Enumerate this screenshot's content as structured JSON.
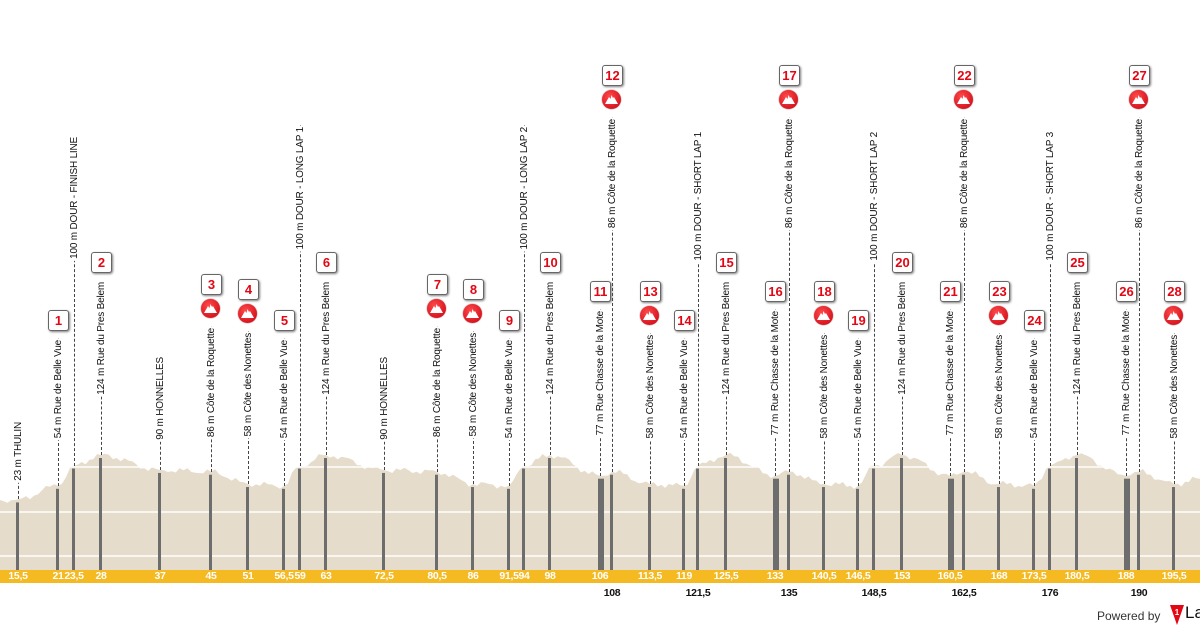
{
  "profile": {
    "fill_color": "#e6dccb",
    "km_bar_color": "#f5b921",
    "marker_number_color": "#e30613",
    "climb_icon_color": "#d10014",
    "waypoints": [
      {
        "km": "15,5",
        "label": "23 m THULIN",
        "alt": 23
      },
      {
        "km": "21",
        "label": "54 m Rue de Belle Vue",
        "alt": 54,
        "number": "1"
      },
      {
        "km": "23,5",
        "label": "100 m DOUR - FINISH LINE",
        "alt": 100
      },
      {
        "km": "28",
        "label": "124 m Rue du Pres Belem",
        "alt": 124,
        "number": "2"
      },
      {
        "km": "37",
        "label": "90 m HONNELLES",
        "alt": 90
      },
      {
        "km": "45",
        "label": "86 m Côte de la Roquette",
        "alt": 86,
        "number": "3",
        "icon": "climb-icon"
      },
      {
        "km": "51",
        "label": "58 m Côte des Nonettes",
        "alt": 58,
        "number": "4",
        "icon": "climb-icon"
      },
      {
        "km": "56,5",
        "label": "54 m Rue de Belle Vue",
        "alt": 54,
        "number": "5"
      },
      {
        "km": "59",
        "label": "100 m DOUR - LONG LAP 1",
        "alt": 100
      },
      {
        "km": "63",
        "label": "124 m Rue du Pres Belem",
        "alt": 124,
        "number": "6"
      },
      {
        "km": "72,5",
        "label": "90 m HONNELLES",
        "alt": 90
      },
      {
        "km": "80,5",
        "label": "86 m Côte de la Roquette",
        "alt": 86,
        "number": "7",
        "icon": "climb-icon"
      },
      {
        "km": "86",
        "label": "58 m Côte des Nonettes",
        "alt": 58,
        "number": "8",
        "icon": "climb-icon"
      },
      {
        "km": "91,5",
        "label": "54 m Rue de Belle Vue",
        "alt": 54,
        "number": "9"
      },
      {
        "km": "94",
        "label": "100 m DOUR - LONG LAP 2",
        "alt": 100
      },
      {
        "km": "98",
        "label": "124 m Rue du Pres Belem",
        "alt": 124,
        "number": "10"
      },
      {
        "km": "106",
        "label": "77 m Rue Chasse de la Mote",
        "alt": 77,
        "number": "11"
      },
      {
        "km": "108",
        "label": "86 m Côte de la Roquette",
        "alt": 86,
        "number": "12",
        "icon": "climb-icon"
      },
      {
        "km": "113,5",
        "label": "58 m Côte des Nonettes",
        "alt": 58,
        "number": "13",
        "icon": "climb-icon"
      },
      {
        "km": "119",
        "label": "54 m Rue de Belle Vue",
        "alt": 54,
        "number": "14"
      },
      {
        "km": "121,5",
        "label": "100 m DOUR - SHORT LAP 1",
        "alt": 100
      },
      {
        "km": "125,5",
        "label": "124 m Rue du Pres Belem",
        "alt": 124,
        "number": "15"
      },
      {
        "km": "133",
        "label": "77 m Rue Chasse de la Mote",
        "alt": 77,
        "number": "16"
      },
      {
        "km": "135",
        "label": "86 m Côte de la Roquette",
        "alt": 86,
        "number": "17",
        "icon": "climb-icon"
      },
      {
        "km": "140,5",
        "label": "58 m Côte des Nonettes",
        "alt": 58,
        "number": "18",
        "icon": "climb-icon"
      },
      {
        "km": "146,5",
        "label": "54 m Rue de Belle Vue",
        "alt": 54,
        "number": "19"
      },
      {
        "km": "148,5",
        "label": "100 m DOUR - SHORT LAP 2",
        "alt": 100
      },
      {
        "km": "153",
        "label": "124 m Rue du Pres Belem",
        "alt": 124,
        "number": "20"
      },
      {
        "km": "160,5",
        "label": "77 m Rue Chasse de la Mote",
        "alt": 77,
        "number": "21"
      },
      {
        "km": "162,5",
        "label": "86 m Côte de la Roquette",
        "alt": 86,
        "number": "22",
        "icon": "climb-icon"
      },
      {
        "km": "168",
        "label": "58 m Côte des Nonettes",
        "alt": 58,
        "number": "23",
        "icon": "climb-icon"
      },
      {
        "km": "173,5",
        "label": "54 m Rue de Belle Vue",
        "alt": 54,
        "number": "24"
      },
      {
        "km": "176",
        "label": "100 m DOUR - SHORT LAP 3",
        "alt": 100
      },
      {
        "km": "180,5",
        "label": "124 m Rue du Pres Belem",
        "alt": 124,
        "number": "25"
      },
      {
        "km": "188",
        "label": "77 m Rue Chasse de la Mote",
        "alt": 77,
        "number": "26"
      },
      {
        "km": "190",
        "label": "86 m Côte de la Roquette",
        "alt": 86,
        "number": "27",
        "icon": "climb-icon"
      },
      {
        "km": "195,5",
        "label": "58 m Côte des Nonettes",
        "alt": 58,
        "number": "28",
        "icon": "climb-icon"
      }
    ]
  },
  "footer": {
    "powered_by": "Powered by",
    "logo_text": "La"
  }
}
